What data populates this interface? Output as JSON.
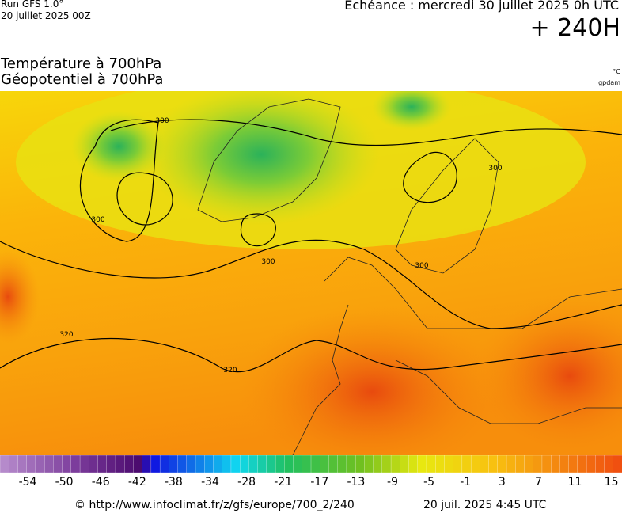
{
  "header": {
    "run": "Run GFS 1.0°",
    "run_date": "20 juillet 2025 00Z",
    "forecast": "Echéance : mercredi 30 juillet 2025 0h UTC",
    "lead": "+ 240H",
    "title_1": "Température à 700hPa",
    "title_2": "Géopotentiel à 700hPa",
    "unit_1": "°C",
    "unit_2": "gpdam"
  },
  "map": {
    "contour_labels": [
      "300",
      "300",
      "300",
      "300",
      "300",
      "320",
      "320"
    ]
  },
  "colorbar": {
    "ticks": [
      -54,
      -50,
      -46,
      -42,
      -38,
      -34,
      -28,
      -21,
      -17,
      -13,
      -9,
      -5,
      -1,
      3,
      7,
      11,
      15
    ]
  },
  "footer": {
    "source": "© http://www.infoclimat.fr/z/gfs/europe/700_2/240",
    "generated": "20 juil. 2025  4:45 UTC"
  }
}
